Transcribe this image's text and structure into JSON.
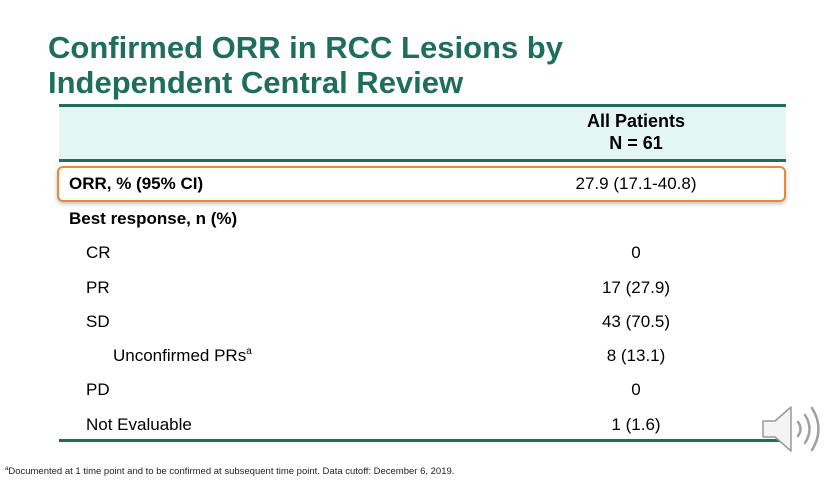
{
  "title": "Confirmed ORR in RCC Lesions by Independent Central Review",
  "table": {
    "header": {
      "line1": "All Patients",
      "line2": "N = 61"
    },
    "orr": {
      "label": "ORR, % (95% CI)",
      "value": "27.9 (17.1-40.8)"
    },
    "best_response_label": "Best response, n (%)",
    "rows": [
      {
        "label": "CR",
        "value": "0"
      },
      {
        "label": "PR",
        "value": "17 (27.9)"
      },
      {
        "label": "SD",
        "value": "43 (70.5)"
      },
      {
        "label": "Unconfirmed PRs",
        "sup": "a",
        "value": "8 (13.1)"
      },
      {
        "label": "PD",
        "value": "0"
      },
      {
        "label": "Not Evaluable",
        "value": "1 (1.6)"
      }
    ]
  },
  "footnote": {
    "sup": "a",
    "text": "Documented at 1 time point and to be confirmed at subsequent time point. Data cutoff: December 6, 2019."
  },
  "icons": {
    "audio": "speaker-icon"
  },
  "colors": {
    "title": "#1f6e5c",
    "header_bg": "#e3f6f2",
    "highlight": "#e8883a"
  }
}
